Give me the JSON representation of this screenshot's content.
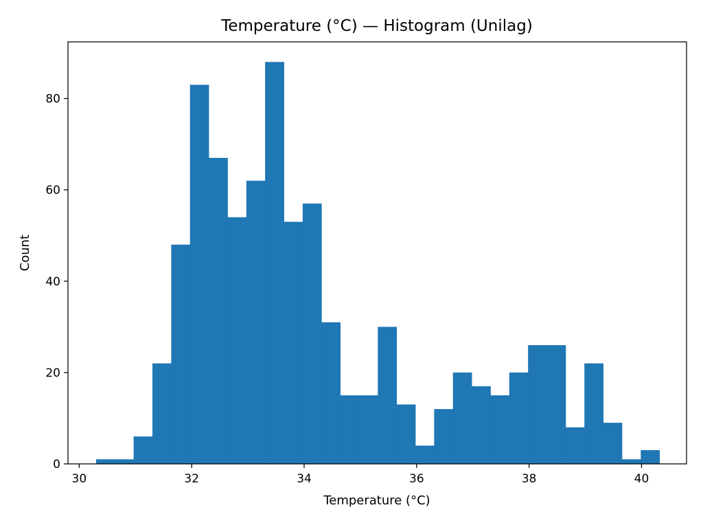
{
  "chart_data": {
    "type": "bar",
    "title": "Temperature (°C) — Histogram (Unilag)",
    "xlabel": "Temperature (°C)",
    "ylabel": "Count",
    "xlim": [
      29.8,
      40.8
    ],
    "ylim": [
      0,
      92.4
    ],
    "x_ticks": [
      30,
      32,
      34,
      36,
      38,
      40
    ],
    "y_ticks": [
      0,
      20,
      40,
      60,
      80
    ],
    "x_tick_labels": [
      "30",
      "32",
      "34",
      "36",
      "38",
      "40"
    ],
    "y_tick_labels": [
      "0",
      "20",
      "40",
      "60",
      "80"
    ],
    "bins": {
      "start": 30.3,
      "width": 0.334,
      "counts": [
        1,
        1,
        6,
        22,
        48,
        83,
        67,
        54,
        62,
        88,
        53,
        57,
        31,
        15,
        15,
        30,
        13,
        4,
        12,
        20,
        17,
        15,
        20,
        26,
        26,
        8,
        22,
        9,
        1,
        3
      ]
    },
    "grid": false,
    "legend": "none",
    "colors": {
      "bar": "#1f77b4",
      "axes": "#000000",
      "background": "#ffffff"
    }
  }
}
